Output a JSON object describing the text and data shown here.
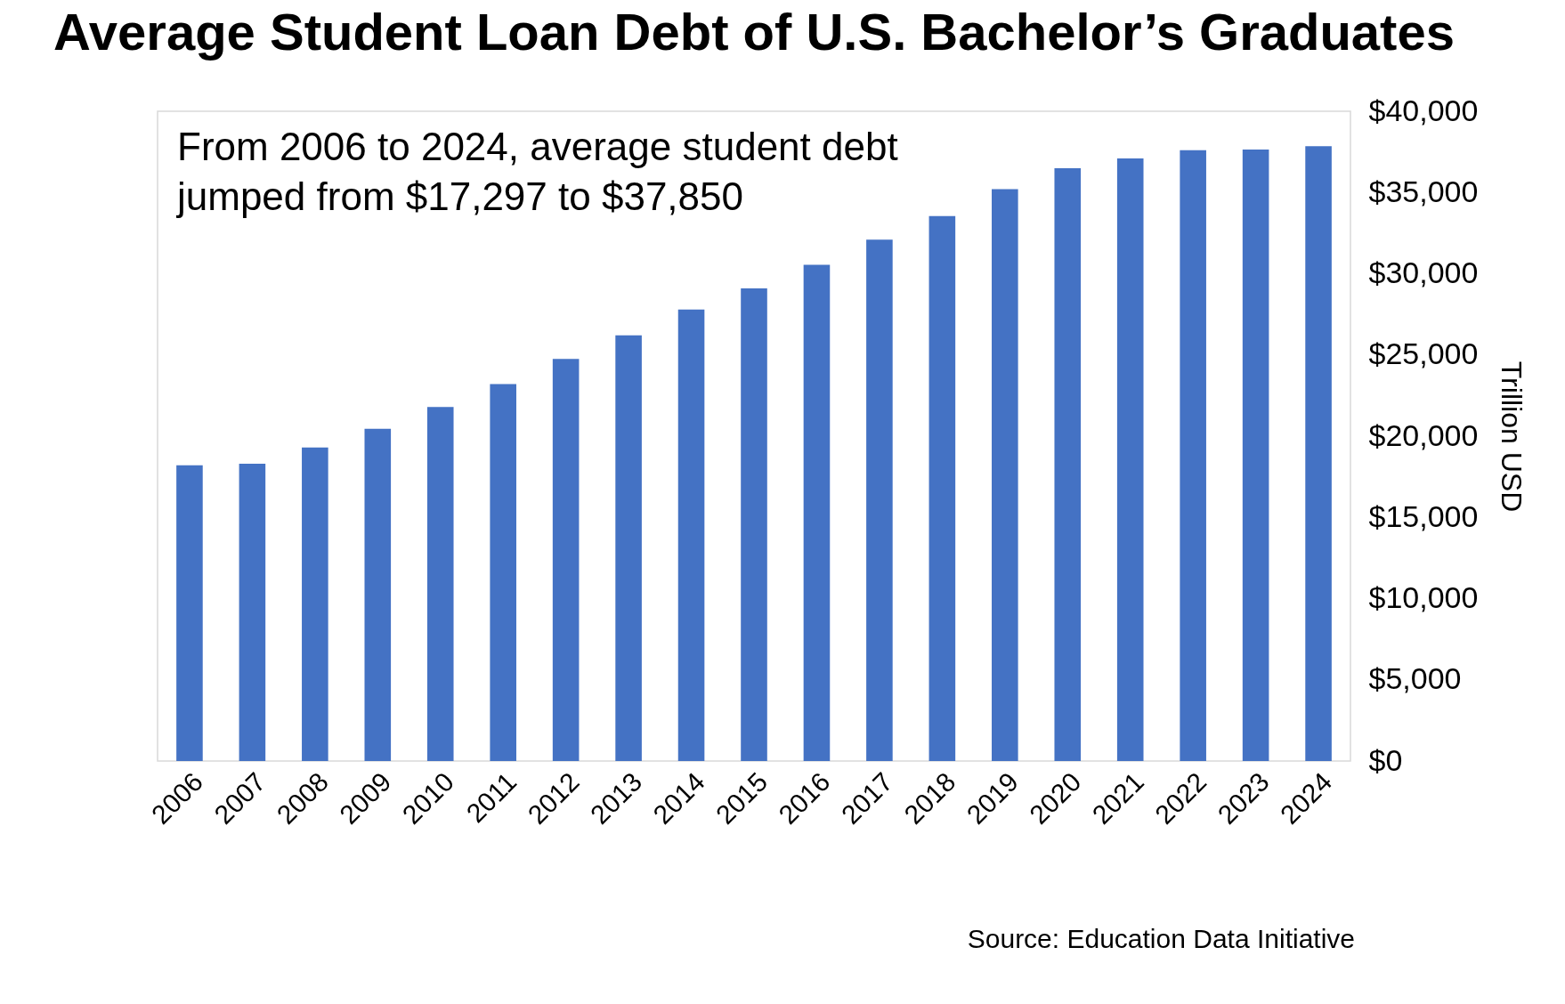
{
  "chart_data": {
    "type": "bar",
    "title": "Average Student Loan Debt of U.S. Bachelor’s Graduates",
    "ylabel": "Trillion USD",
    "categories": [
      "2006",
      "2007",
      "2008",
      "2009",
      "2010",
      "2011",
      "2012",
      "2013",
      "2014",
      "2015",
      "2016",
      "2017",
      "2018",
      "2019",
      "2020",
      "2021",
      "2022",
      "2023",
      "2024"
    ],
    "values": [
      18200,
      18300,
      19300,
      20450,
      21800,
      23200,
      24750,
      26200,
      27800,
      29100,
      30550,
      32100,
      33550,
      35200,
      36500,
      37100,
      37600,
      37650,
      37850
    ],
    "color": "#4472c4",
    "ylim": [
      0,
      40000
    ],
    "yticks": [
      {
        "value": 0,
        "label": "$0"
      },
      {
        "value": 5000,
        "label": "$5,000"
      },
      {
        "value": 10000,
        "label": "$10,000"
      },
      {
        "value": 15000,
        "label": "$15,000"
      },
      {
        "value": 20000,
        "label": "$20,000"
      },
      {
        "value": 25000,
        "label": "$25,000"
      },
      {
        "value": 30000,
        "label": "$30,000"
      },
      {
        "value": 35000,
        "label": "$35,000"
      },
      {
        "value": 40000,
        "label": "$40,000"
      }
    ],
    "grid": false,
    "annotations": [
      "From 2006 to 2024, average student debt jumped from $17,297 to $37,850",
      "Source: Education Data Initiative"
    ]
  }
}
